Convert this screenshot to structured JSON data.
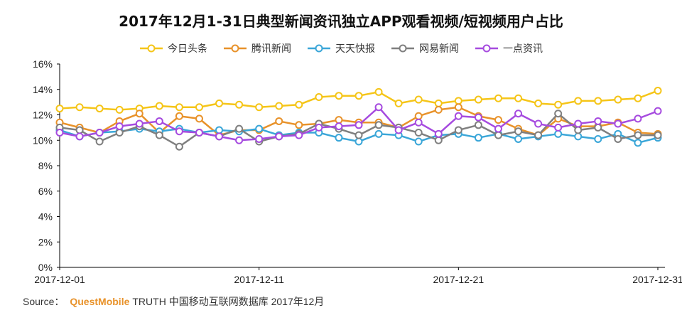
{
  "chart_data": {
    "type": "line",
    "title": "2017年12月1-31日典型新闻资讯独立APP观看视频/短视频用户占比",
    "xlabel": "",
    "ylabel": "",
    "ylim": [
      0,
      16
    ],
    "yticks": [
      "0%",
      "2%",
      "4%",
      "6%",
      "8%",
      "10%",
      "12%",
      "14%",
      "16%"
    ],
    "x_tick_labels": [
      "2017-12-01",
      "2017-12-11",
      "2017-12-21",
      "2017-12-31"
    ],
    "x": [
      "2017-12-01",
      "2017-12-02",
      "2017-12-03",
      "2017-12-04",
      "2017-12-05",
      "2017-12-06",
      "2017-12-07",
      "2017-12-08",
      "2017-12-09",
      "2017-12-10",
      "2017-12-11",
      "2017-12-12",
      "2017-12-13",
      "2017-12-14",
      "2017-12-15",
      "2017-12-16",
      "2017-12-17",
      "2017-12-18",
      "2017-12-19",
      "2017-12-20",
      "2017-12-21",
      "2017-12-22",
      "2017-12-23",
      "2017-12-24",
      "2017-12-25",
      "2017-12-26",
      "2017-12-27",
      "2017-12-28",
      "2017-12-29",
      "2017-12-30",
      "2017-12-31"
    ],
    "grid": false,
    "legend_position": "top",
    "series": [
      {
        "name": "今日头条",
        "color": "#f5c518",
        "values": [
          12.5,
          12.6,
          12.5,
          12.4,
          12.5,
          12.7,
          12.6,
          12.6,
          12.9,
          12.8,
          12.6,
          12.7,
          12.8,
          13.4,
          13.5,
          13.5,
          13.8,
          12.9,
          13.2,
          12.9,
          13.1,
          13.2,
          13.3,
          13.3,
          12.9,
          12.8,
          13.1,
          13.1,
          13.2,
          13.3,
          13.9
        ]
      },
      {
        "name": "腾讯新闻",
        "color": "#e8922a",
        "values": [
          11.4,
          11.0,
          10.6,
          11.5,
          12.1,
          10.6,
          11.9,
          11.7,
          10.4,
          10.8,
          10.8,
          11.5,
          11.2,
          11.3,
          11.6,
          11.4,
          11.4,
          11.0,
          11.9,
          12.4,
          12.6,
          11.9,
          11.6,
          10.9,
          10.4,
          11.7,
          11.1,
          11.1,
          11.4,
          10.6,
          10.5
        ]
      },
      {
        "name": "天天快报",
        "color": "#3aa6d8",
        "values": [
          10.8,
          10.3,
          10.6,
          10.7,
          10.9,
          10.7,
          10.9,
          10.6,
          10.8,
          10.7,
          10.9,
          10.4,
          10.6,
          10.6,
          10.2,
          9.9,
          10.5,
          10.4,
          9.9,
          10.4,
          10.5,
          10.2,
          10.5,
          10.1,
          10.3,
          10.5,
          10.3,
          10.1,
          10.5,
          9.8,
          10.2
        ]
      },
      {
        "name": "网易新闻",
        "color": "#7f7f7f",
        "values": [
          11.0,
          10.8,
          9.9,
          10.6,
          11.1,
          10.4,
          9.5,
          10.6,
          10.3,
          10.9,
          9.9,
          10.3,
          10.5,
          11.3,
          10.9,
          10.4,
          11.2,
          11.0,
          10.6,
          10.0,
          10.8,
          11.2,
          10.4,
          10.7,
          10.4,
          12.1,
          10.8,
          11.0,
          10.1,
          10.4,
          10.4
        ]
      },
      {
        "name": "一点资讯",
        "color": "#a64bdf",
        "values": [
          10.6,
          10.3,
          10.6,
          11.1,
          11.3,
          11.5,
          10.7,
          10.6,
          10.3,
          10.0,
          10.1,
          10.3,
          10.4,
          11.0,
          11.1,
          11.2,
          12.6,
          10.8,
          11.4,
          10.5,
          11.9,
          11.8,
          10.9,
          12.1,
          11.3,
          11.0,
          11.3,
          11.5,
          11.3,
          11.7,
          12.3
        ]
      }
    ]
  },
  "source": {
    "prefix": "Source：",
    "brand": "QuestMobile",
    "rest": "TRUTH 中国移动互联网数据库 2017年12月"
  }
}
